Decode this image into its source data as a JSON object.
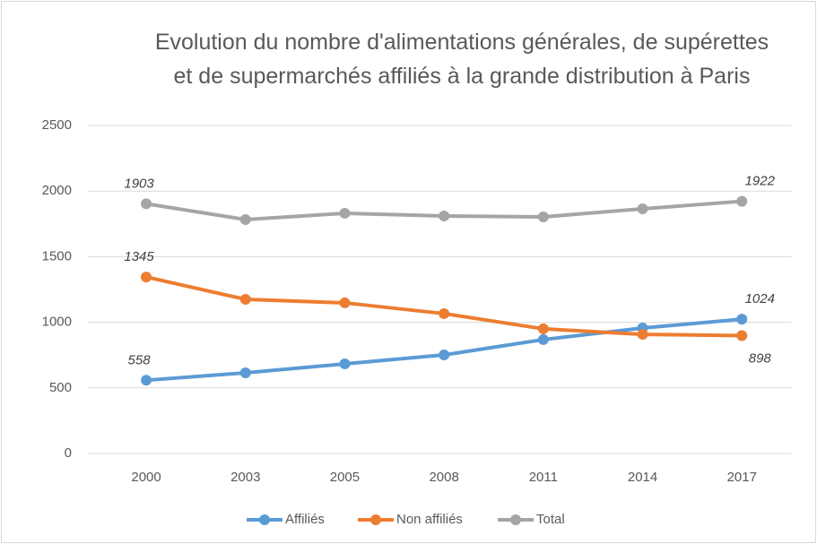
{
  "chart_data": {
    "type": "line",
    "title": "Evolution du nombre d'alimentations générales, de supérettes et de supermarchés affiliés à la grande distribution à Paris",
    "categories": [
      "2000",
      "2003",
      "2005",
      "2008",
      "2011",
      "2014",
      "2017"
    ],
    "series": [
      {
        "name": "Affiliés",
        "color": "#5b9bd5",
        "values": [
          558,
          615,
          683,
          751,
          868,
          956,
          1024
        ],
        "value_labels": [
          "558",
          null,
          null,
          null,
          null,
          null,
          "1024"
        ]
      },
      {
        "name": "Non affiliés",
        "color": "#ed7d31",
        "values": [
          1345,
          1175,
          1148,
          1066,
          950,
          908,
          898
        ],
        "value_labels": [
          "1345",
          null,
          null,
          null,
          null,
          null,
          "898"
        ]
      },
      {
        "name": "Total",
        "color": "#a5a5a5",
        "values": [
          1903,
          1783,
          1831,
          1810,
          1803,
          1865,
          1922
        ],
        "value_labels": [
          "1903",
          null,
          null,
          null,
          null,
          null,
          "1922"
        ]
      }
    ],
    "ylim": [
      0,
      2500
    ],
    "yticks": [
      0,
      500,
      1000,
      1500,
      2000,
      2500
    ],
    "grid": true,
    "legend": "bottom"
  }
}
